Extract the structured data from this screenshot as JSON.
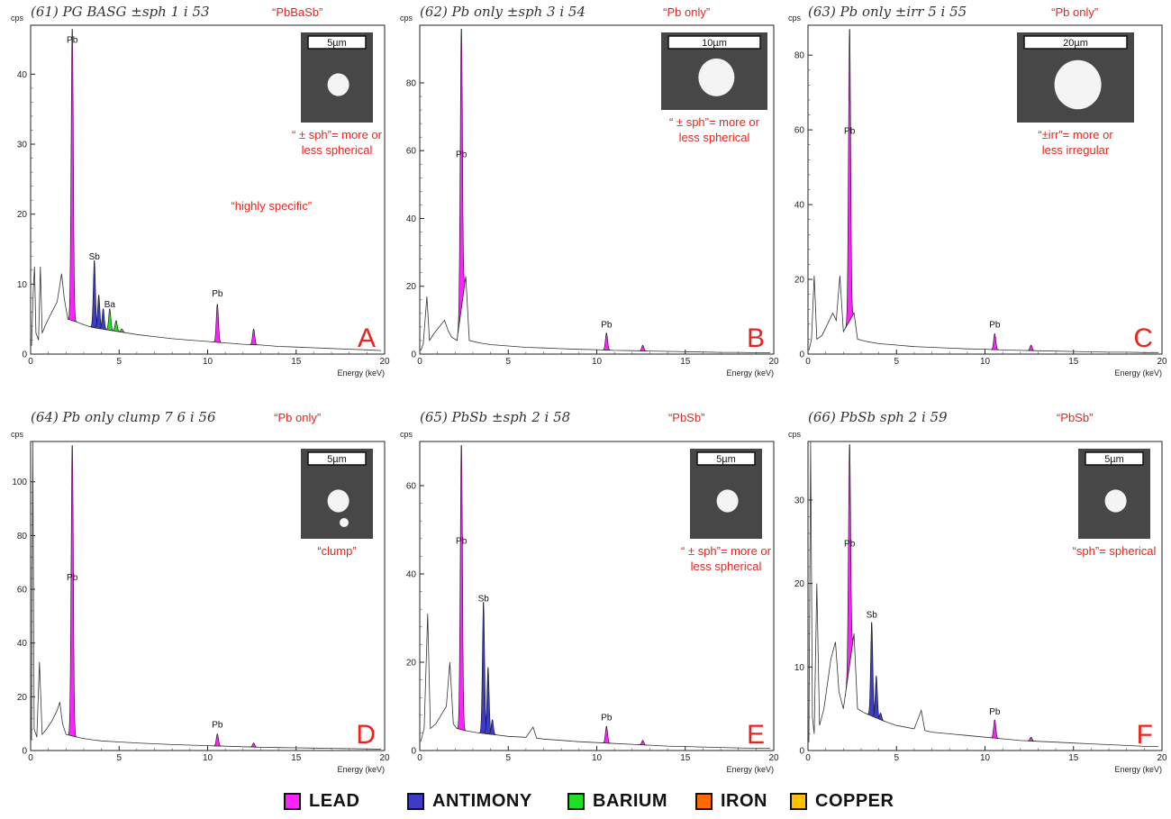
{
  "legend": [
    {
      "label": "LEAD",
      "color": "#ff22ff"
    },
    {
      "label": "ANTIMONY",
      "color": "#3c3cc8"
    },
    {
      "label": "BARIUM",
      "color": "#22dd22"
    },
    {
      "label": "IRON",
      "color": "#ff6a00"
    },
    {
      "label": "COPPER",
      "color": "#ffc000"
    }
  ],
  "chart_data": [
    {
      "type": "area",
      "panel_letter": "A",
      "handwritten_label": "(61) PG BASG ±sph 1 i 53",
      "classification": "“PbBaSb”",
      "morphology_note": [
        "“ ± sph”= more or",
        "less spherical"
      ],
      "extra_note": "“highly specific”",
      "scale_bar": "5µm",
      "ylabel": "cps",
      "xlabel": "Energy (keV)",
      "xlim": [
        0,
        20
      ],
      "ylim": [
        0,
        47
      ],
      "yticks": [
        0,
        10,
        20,
        30,
        40
      ],
      "xticks": [
        0,
        5,
        10,
        15,
        20
      ],
      "background": [
        [
          0.05,
          1.2
        ],
        [
          0.15,
          9
        ],
        [
          0.22,
          12.5
        ],
        [
          0.3,
          3
        ],
        [
          0.45,
          2
        ],
        [
          0.55,
          12.5
        ],
        [
          0.65,
          3
        ],
        [
          0.9,
          4.5
        ],
        [
          1.2,
          6
        ],
        [
          1.5,
          7.5
        ],
        [
          1.75,
          11.5
        ],
        [
          1.9,
          8
        ],
        [
          2.1,
          5
        ],
        [
          2.6,
          4.6
        ],
        [
          3.0,
          4.2
        ],
        [
          3.5,
          3.8
        ],
        [
          4.0,
          3.6
        ],
        [
          5.0,
          3.2
        ],
        [
          6.0,
          2.8
        ],
        [
          7.0,
          2.5
        ],
        [
          8.0,
          2.2
        ],
        [
          9.0,
          2.0
        ],
        [
          10.0,
          1.8
        ],
        [
          11.0,
          1.6
        ],
        [
          12.0,
          1.4
        ],
        [
          13.0,
          1.3
        ],
        [
          14.0,
          1.1
        ],
        [
          15.0,
          1.0
        ],
        [
          16.0,
          0.9
        ],
        [
          17.0,
          0.8
        ],
        [
          18.0,
          0.7
        ],
        [
          19.0,
          0.6
        ],
        [
          19.8,
          0.5
        ]
      ],
      "peaks": [
        {
          "element": "Pb",
          "energy": 2.35,
          "height": 47,
          "label_y": 44,
          "show_label": true
        },
        {
          "element": "Sb",
          "energy": 3.6,
          "height": 13.5,
          "label_y": 13,
          "show_label": true
        },
        {
          "element": "Sb",
          "energy": 3.85,
          "height": 8.5,
          "show_label": false
        },
        {
          "element": "Sb",
          "energy": 4.1,
          "height": 6.5,
          "show_label": false
        },
        {
          "element": "Ba",
          "energy": 4.47,
          "height": 6.5,
          "label_y": 6.2,
          "show_label": true
        },
        {
          "element": "Ba",
          "energy": 4.83,
          "height": 4.8,
          "show_label": false
        },
        {
          "element": "Ba",
          "energy": 5.15,
          "height": 3.6,
          "show_label": false
        },
        {
          "element": "Pb",
          "energy": 10.55,
          "height": 7.2,
          "label_y": 7.7,
          "show_label": true
        },
        {
          "element": "Pb",
          "energy": 12.6,
          "height": 3.6,
          "show_label": false
        }
      ]
    },
    {
      "type": "area",
      "panel_letter": "B",
      "handwritten_label": "(62) Pb only ±sph 3 i 54",
      "classification": "“Pb only”",
      "morphology_note": [
        "“ ± sph”= more or",
        "less spherical"
      ],
      "extra_note": "",
      "scale_bar": "10µm",
      "ylabel": "cps",
      "xlabel": "Energy (keV)",
      "xlim": [
        0,
        20
      ],
      "ylim": [
        0,
        97
      ],
      "yticks": [
        0,
        20,
        40,
        60,
        80
      ],
      "xticks": [
        0,
        5,
        10,
        15,
        20
      ],
      "background": [
        [
          0.05,
          1
        ],
        [
          0.2,
          3
        ],
        [
          0.4,
          17
        ],
        [
          0.55,
          4
        ],
        [
          0.8,
          6
        ],
        [
          1.1,
          8
        ],
        [
          1.4,
          10
        ],
        [
          1.6,
          7
        ],
        [
          1.8,
          5
        ],
        [
          2.1,
          4
        ],
        [
          2.6,
          23
        ],
        [
          2.8,
          4
        ],
        [
          3.2,
          3.5
        ],
        [
          3.5,
          3.2
        ],
        [
          4.0,
          2.8
        ],
        [
          5.0,
          2.4
        ],
        [
          6.0,
          2.0
        ],
        [
          7.0,
          1.8
        ],
        [
          8.0,
          1.6
        ],
        [
          9.0,
          1.4
        ],
        [
          10.0,
          1.3
        ],
        [
          11.0,
          1.1
        ],
        [
          12.0,
          1.0
        ],
        [
          13.0,
          0.9
        ],
        [
          14.0,
          0.8
        ],
        [
          15.0,
          0.7
        ],
        [
          16.0,
          0.6
        ],
        [
          17.0,
          0.5
        ],
        [
          18.0,
          0.5
        ],
        [
          19.0,
          0.4
        ],
        [
          19.8,
          0.4
        ]
      ],
      "peaks": [
        {
          "element": "Pb",
          "energy": 2.35,
          "height": 97,
          "label_y": 57,
          "show_label": true
        },
        {
          "element": "Pb",
          "energy": 10.55,
          "height": 6.3,
          "label_y": 6.8,
          "show_label": true
        },
        {
          "element": "Pb",
          "energy": 12.6,
          "height": 2.6,
          "show_label": false
        }
      ]
    },
    {
      "type": "area",
      "panel_letter": "C",
      "handwritten_label": "(63) Pb only ±irr 5 i 55",
      "classification": "“Pb only”",
      "morphology_note": [
        "“±irr”= more or",
        "less irregular"
      ],
      "extra_note": "",
      "scale_bar": "20µm",
      "ylabel": "cps",
      "xlabel": "Energy (keV)",
      "xlim": [
        0,
        20
      ],
      "ylim": [
        0,
        88
      ],
      "yticks": [
        0,
        20,
        40,
        60,
        80
      ],
      "xticks": [
        0,
        5,
        10,
        15,
        20
      ],
      "background": [
        [
          0.05,
          1
        ],
        [
          0.2,
          4
        ],
        [
          0.35,
          21
        ],
        [
          0.5,
          4
        ],
        [
          0.8,
          5
        ],
        [
          1.1,
          8
        ],
        [
          1.4,
          11
        ],
        [
          1.6,
          9
        ],
        [
          1.8,
          21
        ],
        [
          2.0,
          6
        ],
        [
          2.6,
          11
        ],
        [
          2.8,
          4
        ],
        [
          3.2,
          3.5
        ],
        [
          3.5,
          3.2
        ],
        [
          4.0,
          2.8
        ],
        [
          5.0,
          2.4
        ],
        [
          6.0,
          2.0
        ],
        [
          7.0,
          1.8
        ],
        [
          8.0,
          1.6
        ],
        [
          9.0,
          1.4
        ],
        [
          10.0,
          1.3
        ],
        [
          11.0,
          1.1
        ],
        [
          12.0,
          1.0
        ],
        [
          13.0,
          0.9
        ],
        [
          14.0,
          0.8
        ],
        [
          15.0,
          0.7
        ],
        [
          16.0,
          0.6
        ],
        [
          17.0,
          0.5
        ],
        [
          18.0,
          0.5
        ],
        [
          19.0,
          0.4
        ],
        [
          19.8,
          0.4
        ]
      ],
      "peaks": [
        {
          "element": "Pb",
          "energy": 2.35,
          "height": 88,
          "label_y": 58,
          "show_label": true
        },
        {
          "element": "Pb",
          "energy": 10.55,
          "height": 5.5,
          "label_y": 6.2,
          "show_label": true
        },
        {
          "element": "Pb",
          "energy": 12.6,
          "height": 2.4,
          "show_label": false
        }
      ]
    },
    {
      "type": "area",
      "panel_letter": "D",
      "handwritten_label": "(64) Pb only clump 7 6 i 56",
      "classification": "“Pb only”",
      "morphology_note": [
        "“clump”"
      ],
      "extra_note": "",
      "scale_bar": "5µm",
      "ylabel": "cps",
      "xlabel": "Energy (keV)",
      "xlim": [
        0,
        20
      ],
      "ylim": [
        0,
        115
      ],
      "yticks": [
        0,
        20,
        40,
        60,
        80,
        100
      ],
      "xticks": [
        0,
        5,
        10,
        15,
        20
      ],
      "background": [
        [
          0.05,
          4
        ],
        [
          0.12,
          115
        ],
        [
          0.2,
          8
        ],
        [
          0.35,
          5
        ],
        [
          0.5,
          33
        ],
        [
          0.65,
          6
        ],
        [
          0.9,
          8
        ],
        [
          1.2,
          11
        ],
        [
          1.5,
          15
        ],
        [
          1.65,
          18
        ],
        [
          1.8,
          10
        ],
        [
          2.0,
          6
        ],
        [
          2.6,
          5
        ],
        [
          3.0,
          4.5
        ],
        [
          3.5,
          4
        ],
        [
          4.0,
          3.6
        ],
        [
          5.0,
          3.2
        ],
        [
          6.0,
          2.8
        ],
        [
          7.0,
          2.5
        ],
        [
          8.0,
          2.2
        ],
        [
          9.0,
          2.0
        ],
        [
          10.0,
          1.8
        ],
        [
          11.0,
          1.6
        ],
        [
          12.0,
          1.4
        ],
        [
          13.0,
          1.2
        ],
        [
          14.0,
          1.1
        ],
        [
          15.0,
          1.0
        ],
        [
          16.0,
          0.9
        ],
        [
          17.0,
          0.8
        ],
        [
          18.0,
          0.7
        ],
        [
          19.0,
          0.6
        ],
        [
          19.8,
          0.5
        ]
      ],
      "peaks": [
        {
          "element": "Pb",
          "energy": 2.35,
          "height": 115,
          "label_y": 62,
          "show_label": true
        },
        {
          "element": "Pb",
          "energy": 10.55,
          "height": 6.2,
          "label_y": 7.2,
          "show_label": true
        },
        {
          "element": "Pb",
          "energy": 12.6,
          "height": 2.8,
          "show_label": false
        }
      ]
    },
    {
      "type": "area",
      "panel_letter": "E",
      "handwritten_label": "(65) PbSb ±sph 2 i 58",
      "classification": "“PbSb”",
      "morphology_note": [
        "“ ± sph”= more or",
        "less spherical"
      ],
      "extra_note": "",
      "scale_bar": "5µm",
      "ylabel": "cps",
      "xlabel": "Energy (keV)",
      "xlim": [
        0,
        20
      ],
      "ylim": [
        0,
        70
      ],
      "yticks": [
        0,
        20,
        40,
        60
      ],
      "xticks": [
        0,
        5,
        10,
        15,
        20
      ],
      "background": [
        [
          0.05,
          2
        ],
        [
          0.25,
          5
        ],
        [
          0.45,
          31
        ],
        [
          0.6,
          5
        ],
        [
          0.9,
          6
        ],
        [
          1.2,
          8
        ],
        [
          1.5,
          10
        ],
        [
          1.7,
          20
        ],
        [
          1.9,
          6
        ],
        [
          2.1,
          5
        ],
        [
          2.6,
          4.5
        ],
        [
          3.0,
          4.2
        ],
        [
          3.3,
          4.0
        ],
        [
          4.2,
          3.6
        ],
        [
          5.0,
          3.2
        ],
        [
          6.0,
          3.0
        ],
        [
          6.4,
          5.3
        ],
        [
          6.6,
          2.8
        ],
        [
          7.0,
          2.6
        ],
        [
          8.0,
          2.3
        ],
        [
          9.0,
          2.0
        ],
        [
          10.0,
          1.8
        ],
        [
          11.0,
          1.6
        ],
        [
          12.0,
          1.4
        ],
        [
          13.0,
          1.2
        ],
        [
          14.0,
          1.0
        ],
        [
          15.0,
          0.9
        ],
        [
          16.0,
          0.8
        ],
        [
          17.0,
          0.7
        ],
        [
          18.0,
          0.6
        ],
        [
          19.0,
          0.5
        ],
        [
          19.8,
          0.5
        ]
      ],
      "peaks": [
        {
          "element": "Pb",
          "energy": 2.35,
          "height": 70,
          "label_y": 46,
          "show_label": true
        },
        {
          "element": "Sb",
          "energy": 3.6,
          "height": 34,
          "label_y": 33,
          "show_label": true
        },
        {
          "element": "Sb",
          "energy": 3.86,
          "height": 19,
          "show_label": false
        },
        {
          "element": "Sb",
          "energy": 4.1,
          "height": 7,
          "show_label": false
        },
        {
          "element": "Pb",
          "energy": 10.55,
          "height": 5.5,
          "label_y": 6.0,
          "show_label": true
        },
        {
          "element": "Pb",
          "energy": 12.6,
          "height": 2.3,
          "show_label": false
        }
      ]
    },
    {
      "type": "area",
      "panel_letter": "F",
      "handwritten_label": "(66) PbSb sph 2 i 59",
      "classification": "“PbSb”",
      "morphology_note": [
        "“sph”= spherical"
      ],
      "extra_note": "",
      "scale_bar": "5µm",
      "ylabel": "cps",
      "xlabel": "Energy (keV)",
      "xlim": [
        0,
        20
      ],
      "ylim": [
        0,
        37
      ],
      "yticks": [
        0,
        10,
        20,
        30
      ],
      "xticks": [
        0,
        5,
        10,
        15,
        20
      ],
      "background": [
        [
          0.05,
          1
        ],
        [
          0.15,
          37
        ],
        [
          0.25,
          4
        ],
        [
          0.35,
          2
        ],
        [
          0.5,
          20
        ],
        [
          0.65,
          3
        ],
        [
          0.9,
          5
        ],
        [
          1.1,
          8
        ],
        [
          1.3,
          11
        ],
        [
          1.55,
          13
        ],
        [
          1.75,
          7
        ],
        [
          2.0,
          5
        ],
        [
          2.6,
          14
        ],
        [
          2.8,
          5
        ],
        [
          3.2,
          4.5
        ],
        [
          4.2,
          3.6
        ],
        [
          5.0,
          3.0
        ],
        [
          6.0,
          2.6
        ],
        [
          6.4,
          4.8
        ],
        [
          6.6,
          2.4
        ],
        [
          7.0,
          2.2
        ],
        [
          8.0,
          2.0
        ],
        [
          9.0,
          1.8
        ],
        [
          10.0,
          1.6
        ],
        [
          11.0,
          1.4
        ],
        [
          12.0,
          1.2
        ],
        [
          13.0,
          1.1
        ],
        [
          14.0,
          1.0
        ],
        [
          15.0,
          0.9
        ],
        [
          16.0,
          0.8
        ],
        [
          17.0,
          0.7
        ],
        [
          18.0,
          0.6
        ],
        [
          19.0,
          0.5
        ],
        [
          19.8,
          0.5
        ]
      ],
      "peaks": [
        {
          "element": "Pb",
          "energy": 2.35,
          "height": 37,
          "label_y": 24,
          "show_label": true
        },
        {
          "element": "Sb",
          "energy": 3.6,
          "height": 15.5,
          "label_y": 15.5,
          "show_label": true
        },
        {
          "element": "Sb",
          "energy": 3.86,
          "height": 9,
          "show_label": false
        },
        {
          "element": "Sb",
          "energy": 4.1,
          "height": 4.5,
          "show_label": false
        },
        {
          "element": "Pb",
          "energy": 10.55,
          "height": 3.7,
          "label_y": 3.9,
          "show_label": true
        },
        {
          "element": "Pb",
          "energy": 12.6,
          "height": 1.6,
          "show_label": false
        }
      ]
    }
  ]
}
